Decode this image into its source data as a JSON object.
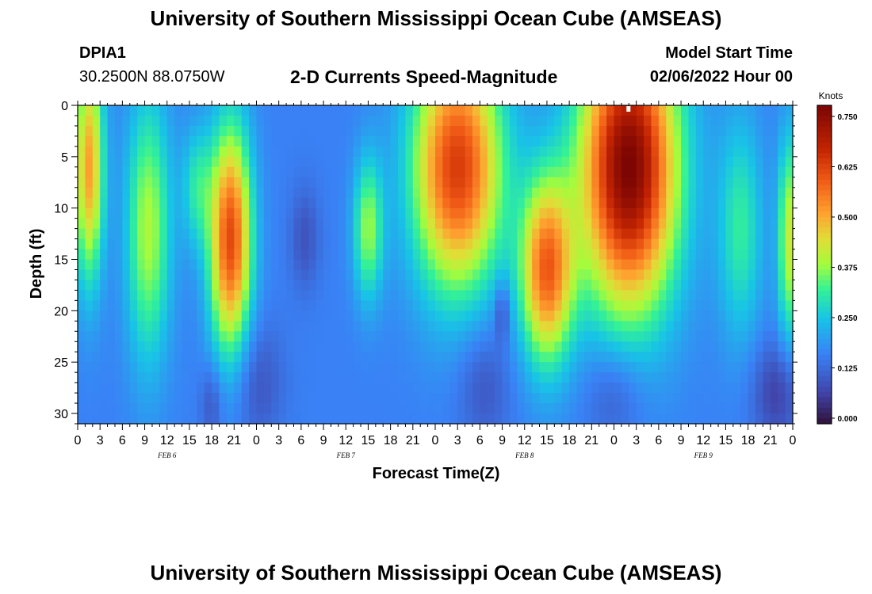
{
  "title": "University of Southern Mississippi Ocean Cube (AMSEAS)",
  "station": {
    "id": "DPIA1",
    "coords": "30.2500N  88.0750W"
  },
  "model_start": {
    "label": "Model Start Time",
    "value": "02/06/2022 Hour 00"
  },
  "colors": {
    "low": "#2b0f4f",
    "mid": "#3adfa0",
    "high": "#7a0403"
  },
  "chart_data": {
    "type": "heatmap",
    "title": "2-D Currents Speed-Magnitude",
    "xlabel": "Forecast Time(Z)",
    "ylabel": "Depth (ft)",
    "colorbar_label": "Knots",
    "colorbar_ticks": [
      "0.750",
      "0.625",
      "0.500",
      "0.375",
      "0.250",
      "0.125",
      "0.000"
    ],
    "colorbar_range": [
      0.0,
      0.78
    ],
    "y_ticks": [
      "0",
      "5",
      "10",
      "15",
      "20",
      "25",
      "30"
    ],
    "ylim": [
      0,
      31
    ],
    "x_ticks": [
      "0",
      "3",
      "6",
      "9",
      "12",
      "15",
      "18",
      "21",
      "0",
      "3",
      "6",
      "9",
      "12",
      "15",
      "18",
      "21",
      "0",
      "3",
      "6",
      "9",
      "12",
      "15",
      "18",
      "21",
      "0",
      "3",
      "6",
      "9",
      "12",
      "15",
      "18",
      "21",
      "0"
    ],
    "xlim_hours": [
      0,
      96
    ],
    "dates": [
      {
        "label": "FEB 6",
        "hour": 12
      },
      {
        "label": "FEB 7",
        "hour": 36
      },
      {
        "label": "FEB 8",
        "hour": 60
      },
      {
        "label": "FEB 9",
        "hour": 84
      }
    ],
    "features": [
      {
        "hour": 1.5,
        "depth": 6,
        "dt": 2.0,
        "dd": 11,
        "value": 0.52
      },
      {
        "hour": 9.5,
        "depth": 12,
        "dt": 3.0,
        "dd": 13,
        "value": 0.4
      },
      {
        "hour": 20.5,
        "depth": 13,
        "dt": 2.8,
        "dd": 11,
        "value": 0.62
      },
      {
        "hour": 16.0,
        "depth": 8,
        "dt": 2.0,
        "dd": 6,
        "value": 0.3
      },
      {
        "hour": 39.0,
        "depth": 12,
        "dt": 2.0,
        "dd": 7,
        "value": 0.38
      },
      {
        "hour": 51.0,
        "depth": 6,
        "dt": 6.0,
        "dd": 12,
        "value": 0.64
      },
      {
        "hour": 63.0,
        "depth": 16,
        "dt": 3.5,
        "dd": 9,
        "value": 0.58
      },
      {
        "hour": 74.0,
        "depth": 6,
        "dt": 6.5,
        "dd": 14,
        "value": 0.78
      },
      {
        "hour": 89.0,
        "depth": 12,
        "dt": 3.0,
        "dd": 11,
        "value": 0.32
      },
      {
        "hour": 95.5,
        "depth": 13,
        "dt": 1.5,
        "dd": 10,
        "value": 0.42
      }
    ],
    "lows": [
      {
        "hour": 24.0,
        "depth": 27,
        "dt": 3.5,
        "dd": 6,
        "value": 0.15
      },
      {
        "hour": 30.5,
        "depth": 13,
        "dt": 2.0,
        "dd": 5,
        "value": 0.15
      },
      {
        "hour": 54.5,
        "depth": 27,
        "dt": 3.5,
        "dd": 6,
        "value": 0.15
      },
      {
        "hour": 57.0,
        "depth": 20,
        "dt": 1.0,
        "dd": 3,
        "value": 0.12
      },
      {
        "hour": 72.0,
        "depth": 28,
        "dt": 4.0,
        "dd": 5,
        "value": 0.15
      },
      {
        "hour": 94.0,
        "depth": 28,
        "dt": 3.5,
        "dd": 5,
        "value": 0.12
      },
      {
        "hour": 18.0,
        "depth": 29,
        "dt": 1.5,
        "dd": 4,
        "value": 0.15
      }
    ],
    "background_value": 0.17,
    "marker_hour": 74.0
  }
}
